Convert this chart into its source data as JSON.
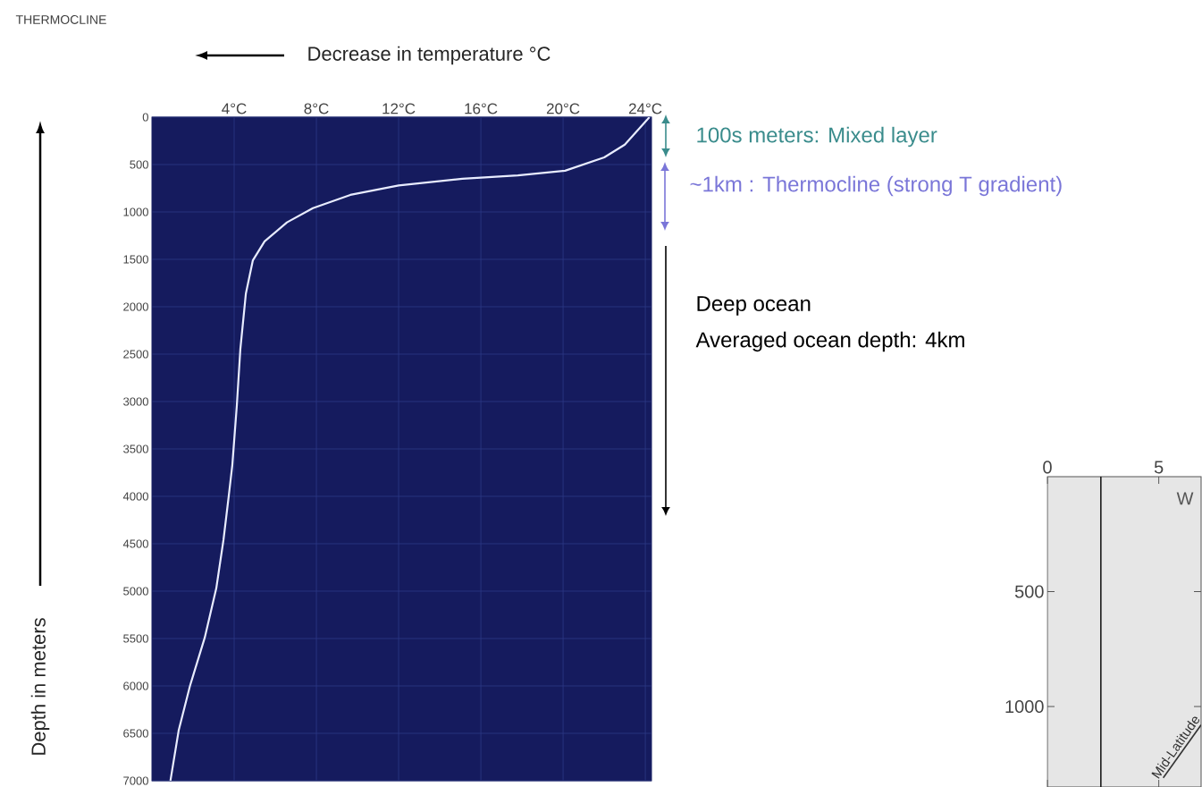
{
  "chart_data": [
    {
      "type": "line",
      "title": "THERMOCLINE",
      "xlabel": "Decrease in temperature °C",
      "ylabel": "Depth in meters",
      "x": [
        24.2,
        23.0,
        22.0,
        20.1,
        17.8,
        15.1,
        12.0,
        9.65,
        7.83,
        6.57,
        5.48,
        4.91,
        4.57,
        4.3,
        4.13,
        3.91,
        3.74,
        3.48,
        3.13,
        2.57,
        1.85,
        1.3,
        0.9
      ],
      "series": [
        {
          "color": "#e8ecff",
          "values": [
            0,
            290,
            425,
            565,
            615,
            650,
            720,
            820,
            960,
            1110,
            1310,
            1510,
            1860,
            2450,
            3040,
            3670,
            3990,
            4460,
            4970,
            5490,
            6000,
            6470,
            7000
          ]
        }
      ],
      "xlim": [
        0,
        24.3
      ],
      "xticks": [
        {
          "value": 4,
          "label": "4°C"
        },
        {
          "value": 8,
          "label": "8°C"
        },
        {
          "value": 12,
          "label": "12°C"
        },
        {
          "value": 16,
          "label": "16°C"
        },
        {
          "value": 20,
          "label": "20°C"
        },
        {
          "value": 24,
          "label": "24°C"
        }
      ],
      "ylim": [
        7000,
        0
      ],
      "yticks": [
        0,
        500,
        1000,
        1500,
        2000,
        2500,
        3000,
        3500,
        4000,
        4500,
        5000,
        5500,
        6000,
        6500,
        7000
      ],
      "grid": true,
      "annotations": [
        "100s meters: Mixed layer",
        "~1km : Thermocline (strong T gradient)",
        "Deep ocean",
        "Averaged ocean depth: 4km"
      ]
    },
    {
      "type": "line",
      "xlim": [
        0,
        6.9
      ],
      "xticks": [
        0,
        5
      ],
      "ylim": [
        1350,
        0
      ],
      "yticks": [
        500,
        1000
      ],
      "series": [
        {
          "color": "#1a1a1a",
          "x": [
            2.4,
            2.4
          ],
          "values": [
            0,
            1350
          ]
        },
        {
          "name": "Mid-Latitude",
          "color": "#333333",
          "x": [
            5.2,
            6.9
          ],
          "values": [
            1310,
            1080
          ]
        }
      ],
      "annotations": [
        "W"
      ]
    }
  ]
}
